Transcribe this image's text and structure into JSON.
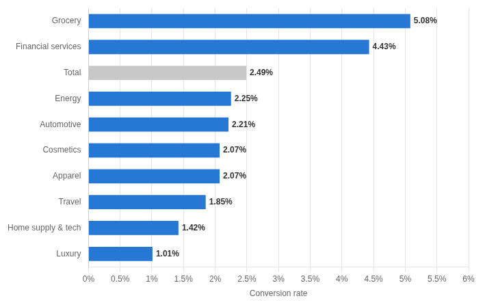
{
  "chart_data": {
    "type": "bar",
    "orientation": "horizontal",
    "categories": [
      "Luxury",
      "Home supply & tech",
      "Travel",
      "Apparel",
      "Cosmetics",
      "Automotive",
      "Energy",
      "Total",
      "Financial services",
      "Grocery"
    ],
    "values": [
      1.01,
      1.42,
      1.85,
      2.07,
      2.07,
      2.21,
      2.25,
      2.49,
      4.43,
      5.08
    ],
    "value_labels": [
      "1.01%",
      "1.42%",
      "1.85%",
      "2.07%",
      "2.07%",
      "2.21%",
      "2.25%",
      "2.49%",
      "4.43%",
      "5.08%"
    ],
    "colors": [
      "#2777d4",
      "#2777d4",
      "#2777d4",
      "#2777d4",
      "#2777d4",
      "#2777d4",
      "#2777d4",
      "#c8c8c8",
      "#2777d4",
      "#2777d4"
    ],
    "xlabel": "Conversion rate",
    "xlim": [
      0,
      6
    ],
    "xticks": [
      {
        "value": 0,
        "label": "0%"
      },
      {
        "value": 0.5,
        "label": "0.5%"
      },
      {
        "value": 1.0,
        "label": "1%"
      },
      {
        "value": 1.5,
        "label": "1.5%"
      },
      {
        "value": 2.0,
        "label": "2%"
      },
      {
        "value": 2.5,
        "label": "2.5%"
      },
      {
        "value": 3.0,
        "label": "3%"
      },
      {
        "value": 3.5,
        "label": "3.5%"
      },
      {
        "value": 4.0,
        "label": "4%"
      },
      {
        "value": 4.5,
        "label": "4.5%"
      },
      {
        "value": 5.0,
        "label": "5%"
      },
      {
        "value": 5.5,
        "label": "5.5%"
      },
      {
        "value": 6.0,
        "label": "6%"
      }
    ],
    "grid": true,
    "data_labels": true
  }
}
